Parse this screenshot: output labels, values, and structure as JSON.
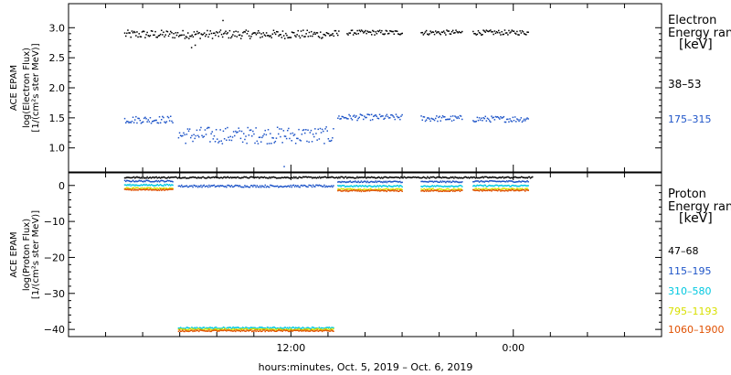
{
  "chart_data": [
    {
      "type": "scatter",
      "panel": "electron",
      "ylabel_lines": [
        "ACE EPAM",
        "log(Electron Flux)",
        "[1/(cm²s ster MeV)]"
      ],
      "ylim": [
        0.6,
        3.4
      ],
      "yticks": [
        1.0,
        1.5,
        2.0,
        2.5,
        3.0
      ],
      "ytick_labels": [
        "1.0",
        "1.5",
        "2.0",
        "2.5",
        "3.0"
      ],
      "legend_title_lines": [
        "Electron",
        "Energy ranges",
        "[keV]"
      ],
      "series": [
        {
          "name": "38–53",
          "color": "#000000",
          "segments": [
            [
              3.0,
              14.6,
              2.9,
              0.07
            ],
            [
              15.0,
              18.0,
              2.93,
              0.04
            ],
            [
              19.0,
              21.2,
              2.93,
              0.04
            ],
            [
              21.8,
              24.8,
              2.93,
              0.04
            ]
          ],
          "extra_points": [
            [
              6.6,
              2.68
            ],
            [
              6.8,
              2.72
            ],
            [
              8.3,
              3.13
            ]
          ]
        },
        {
          "name": "175–315",
          "color": "#1f55c8",
          "segments": [
            [
              3.0,
              5.6,
              1.48,
              0.06
            ],
            [
              5.9,
              14.3,
              1.22,
              0.14
            ],
            [
              14.5,
              18.0,
              1.52,
              0.05
            ],
            [
              19.0,
              21.2,
              1.5,
              0.05
            ],
            [
              21.8,
              24.8,
              1.49,
              0.05
            ]
          ],
          "extra_points": [
            [
              11.6,
              0.7
            ]
          ]
        }
      ]
    },
    {
      "type": "scatter",
      "panel": "proton",
      "ylabel_lines": [
        "ACE EPAM",
        "log(Proton Flux)",
        "[1/(cm²s ster MeV)]"
      ],
      "ylim": [
        -42,
        3.5
      ],
      "yticks": [
        -40,
        -30,
        -20,
        -10,
        0
      ],
      "ytick_labels": [
        "−40",
        "−30",
        "−20",
        "−10",
        "0"
      ],
      "legend_title_lines": [
        "Proton",
        "Energy ranges",
        "[keV]"
      ],
      "series": [
        {
          "name": "47–68",
          "color": "#000000",
          "segments": [
            [
              3.0,
              25.0,
              2.4,
              0.2
            ]
          ]
        },
        {
          "name": "115–195",
          "color": "#1f55c8",
          "segments": [
            [
              3.0,
              5.6,
              1.4,
              0.2
            ],
            [
              5.9,
              14.3,
              0.0,
              0.3
            ],
            [
              14.5,
              18.0,
              1.2,
              0.2
            ],
            [
              19.0,
              21.2,
              1.2,
              0.2
            ],
            [
              21.8,
              24.8,
              1.3,
              0.2
            ]
          ]
        },
        {
          "name": "310–580",
          "color": "#00c8e0",
          "segments": [
            [
              3.0,
              5.6,
              0.3,
              0.2
            ],
            [
              5.9,
              14.3,
              -39.4,
              0.2
            ],
            [
              14.5,
              18.0,
              0.0,
              0.2
            ],
            [
              19.0,
              21.2,
              0.0,
              0.2
            ],
            [
              21.8,
              24.8,
              0.1,
              0.2
            ]
          ]
        },
        {
          "name": "795–1193",
          "color": "#d8e000",
          "segments": [
            [
              3.0,
              5.6,
              -0.6,
              0.2
            ],
            [
              5.9,
              14.3,
              -39.8,
              0.2
            ],
            [
              14.5,
              18.0,
              -0.9,
              0.2
            ],
            [
              19.0,
              21.2,
              -0.9,
              0.2
            ],
            [
              21.8,
              24.8,
              -0.8,
              0.2
            ]
          ]
        },
        {
          "name": "1060–1900",
          "color": "#e05000",
          "segments": [
            [
              3.0,
              5.6,
              -1.0,
              0.2
            ],
            [
              5.9,
              14.3,
              -40.2,
              0.2
            ],
            [
              14.5,
              18.0,
              -1.3,
              0.2
            ],
            [
              19.0,
              21.2,
              -1.3,
              0.2
            ],
            [
              21.8,
              24.8,
              -1.2,
              0.2
            ]
          ]
        }
      ]
    }
  ],
  "x_axis": {
    "range_hours": [
      0,
      32
    ],
    "major_ticks": [
      12,
      24
    ],
    "major_tick_labels": [
      "12:00",
      "0:00"
    ],
    "label": "hours:minutes, Oct.  5, 2019 – Oct.  6, 2019"
  }
}
